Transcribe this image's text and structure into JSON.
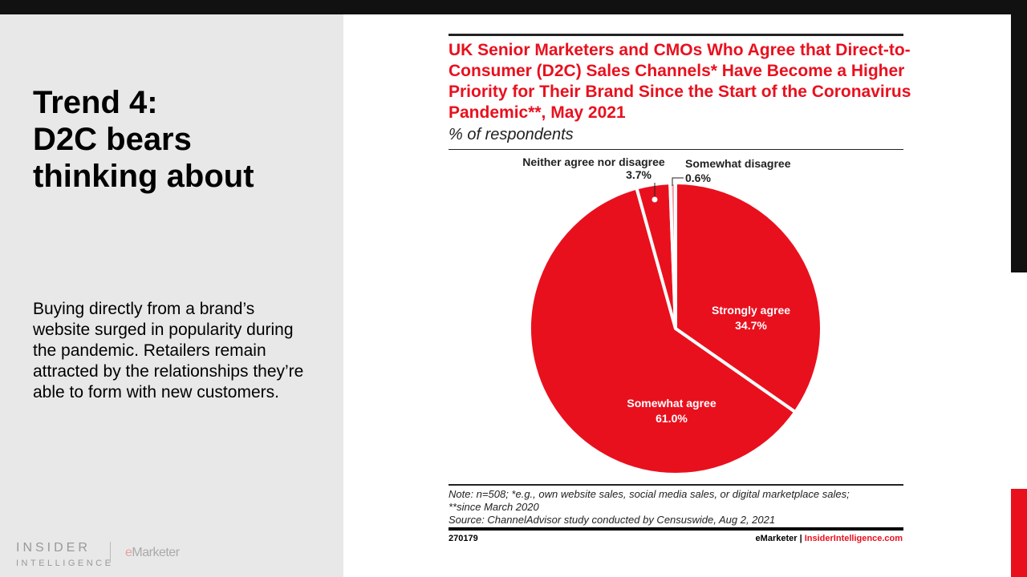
{
  "slide": {
    "title_lines": [
      "Trend 4:",
      "D2C bears",
      "thinking about"
    ],
    "body": "Buying directly from a brand’s website surged in popularity during the pandemic. Retailers remain attracted by the relationships they’re able to form with new customers.",
    "logo_insider": "INSIDER",
    "logo_intelligence": "INTELLIGENCE",
    "logo_emarketer_e": "e",
    "logo_emarketer_rest": "Marketer"
  },
  "chart_data": {
    "type": "pie",
    "title": "UK Senior Marketers and CMOs Who Agree that Direct-to-Consumer (D2C) Sales Channels* Have Become a Higher Priority for Their Brand Since the Start of the Coronavirus Pandemic**, May 2021",
    "subtitle": "% of respondents",
    "slices": [
      {
        "label": "Strongly agree",
        "value": 34.7,
        "display": "34.7%"
      },
      {
        "label": "Somewhat agree",
        "value": 61.0,
        "display": "61.0%"
      },
      {
        "label": "Neither agree nor disagree",
        "value": 3.7,
        "display": "3.7%"
      },
      {
        "label": "Somewhat disagree",
        "value": 0.6,
        "display": "0.6%"
      }
    ],
    "colors": {
      "main": "#e9101e",
      "small": "#f3a5aa",
      "edge": "#ffffff"
    },
    "note_lines": [
      "Note: n=508; *e.g., own website sales, social media sales, or digital marketplace sales;",
      "**since March 2020",
      "Source: ChannelAdvisor study conducted by Censuswide, Aug 2, 2021"
    ],
    "chart_id": "270179",
    "credit_brand": "eMarketer",
    "credit_sep": "|",
    "credit_site": "InsiderIntelligence.com"
  }
}
